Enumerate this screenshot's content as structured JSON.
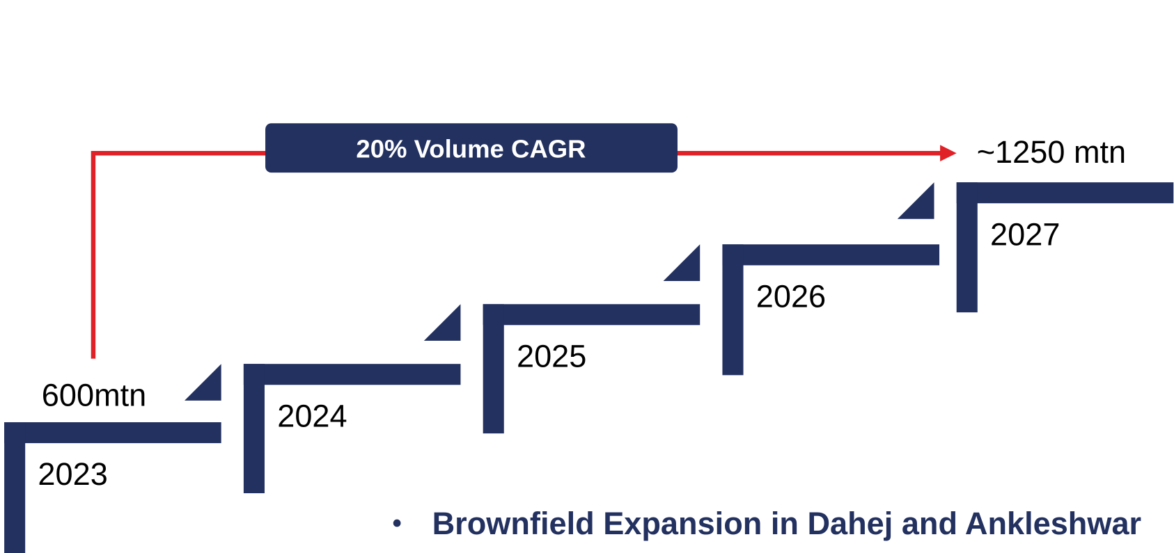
{
  "diagram": {
    "growth_label": "20% Volume CAGR",
    "start_volume": "600mtn",
    "end_volume": "~1250 mtn",
    "years": [
      "2023",
      "2024",
      "2025",
      "2026",
      "2027"
    ],
    "bullet": "Brownfield Expansion in Dahej and Ankleshwar"
  }
}
